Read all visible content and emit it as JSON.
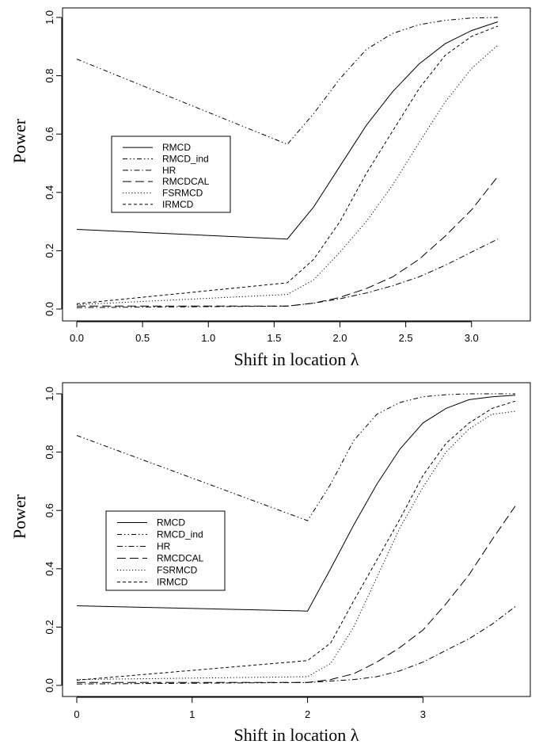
{
  "chart_data": [
    {
      "type": "line",
      "xlabel": "Shift in location λ",
      "ylabel": "Power",
      "xlim": [
        0,
        3.2
      ],
      "ylim": [
        0,
        1
      ],
      "xticks": [
        "0.0",
        "0.5",
        "1.0",
        "1.5",
        "2.0",
        "2.5",
        "3.0"
      ],
      "yticks": [
        "0.0",
        "0.2",
        "0.4",
        "0.6",
        "0.8",
        "1.0"
      ],
      "grid": false,
      "legend_position": "center-left",
      "x": [
        0,
        1.6,
        1.8,
        2.0,
        2.2,
        2.4,
        2.6,
        2.8,
        3.0,
        3.2
      ],
      "series": [
        {
          "name": "RMCD",
          "line_style": "solid",
          "values": [
            0.273,
            0.24,
            0.35,
            0.49,
            0.63,
            0.745,
            0.84,
            0.91,
            0.955,
            0.985
          ]
        },
        {
          "name": "RMCD_ind",
          "line_style": "dashdotdot",
          "values": [
            0.857,
            0.565,
            0.67,
            0.79,
            0.89,
            0.945,
            0.975,
            0.99,
            0.998,
            1.0
          ]
        },
        {
          "name": "HR",
          "line_style": "dashdot",
          "values": [
            0.005,
            0.01,
            0.02,
            0.035,
            0.055,
            0.08,
            0.11,
            0.15,
            0.195,
            0.24
          ]
        },
        {
          "name": "RMCDCAL",
          "line_style": "longdash",
          "values": [
            0.01,
            0.01,
            0.02,
            0.04,
            0.07,
            0.11,
            0.17,
            0.25,
            0.34,
            0.455
          ]
        },
        {
          "name": "FSRMCD",
          "line_style": "dotted",
          "values": [
            0.015,
            0.05,
            0.1,
            0.195,
            0.3,
            0.425,
            0.57,
            0.71,
            0.825,
            0.905
          ]
        },
        {
          "name": "IRMCD",
          "line_style": "dashed",
          "values": [
            0.018,
            0.09,
            0.17,
            0.3,
            0.465,
            0.61,
            0.755,
            0.87,
            0.935,
            0.97
          ]
        }
      ]
    },
    {
      "type": "line",
      "xlabel": "Shift in location λ",
      "ylabel": "Power",
      "xlim": [
        0,
        3.8
      ],
      "ylim": [
        0,
        1
      ],
      "xticks": [
        "0",
        "1",
        "2",
        "3"
      ],
      "yticks": [
        "0.0",
        "0.2",
        "0.4",
        "0.6",
        "0.8",
        "1.0"
      ],
      "grid": false,
      "legend_position": "center-left",
      "x": [
        0,
        2.0,
        2.2,
        2.4,
        2.6,
        2.8,
        3.0,
        3.2,
        3.4,
        3.6,
        3.8
      ],
      "series": [
        {
          "name": "RMCD",
          "line_style": "solid",
          "values": [
            0.273,
            0.255,
            0.4,
            0.55,
            0.69,
            0.81,
            0.9,
            0.95,
            0.98,
            0.99,
            0.995
          ]
        },
        {
          "name": "RMCD_ind",
          "line_style": "dashdotdot",
          "values": [
            0.857,
            0.565,
            0.69,
            0.84,
            0.93,
            0.97,
            0.99,
            0.997,
            1.0,
            1.0,
            1.0
          ]
        },
        {
          "name": "HR",
          "line_style": "dashdot",
          "values": [
            0.005,
            0.01,
            0.015,
            0.02,
            0.03,
            0.05,
            0.08,
            0.12,
            0.16,
            0.21,
            0.27
          ]
        },
        {
          "name": "RMCDCAL",
          "line_style": "longdash",
          "values": [
            0.01,
            0.01,
            0.02,
            0.04,
            0.08,
            0.13,
            0.19,
            0.28,
            0.38,
            0.5,
            0.615
          ]
        },
        {
          "name": "FSRMCD",
          "line_style": "dotted",
          "values": [
            0.02,
            0.03,
            0.075,
            0.2,
            0.37,
            0.54,
            0.68,
            0.8,
            0.88,
            0.93,
            0.94
          ]
        },
        {
          "name": "IRMCD",
          "line_style": "dashed",
          "values": [
            0.018,
            0.085,
            0.145,
            0.29,
            0.43,
            0.57,
            0.72,
            0.83,
            0.9,
            0.95,
            0.975
          ]
        }
      ]
    }
  ]
}
